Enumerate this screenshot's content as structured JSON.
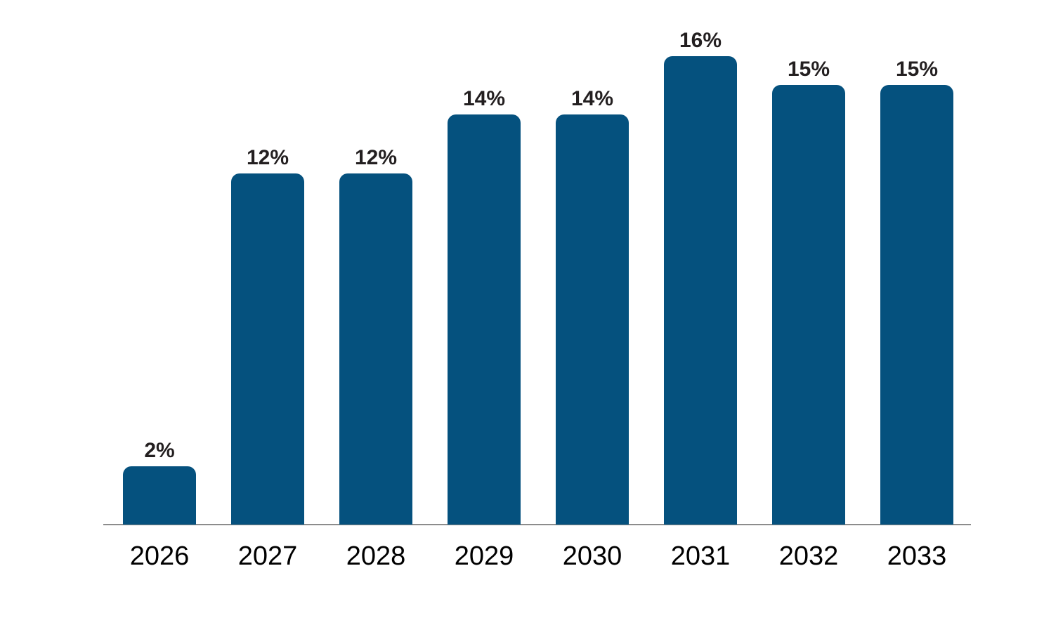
{
  "chart_data": {
    "type": "bar",
    "categories": [
      "2026",
      "2027",
      "2028",
      "2029",
      "2030",
      "2031",
      "2032",
      "2033"
    ],
    "values": [
      2,
      12,
      12,
      14,
      14,
      16,
      15,
      15
    ],
    "value_labels": [
      "2%",
      "12%",
      "12%",
      "14%",
      "14%",
      "16%",
      "15%",
      "15%"
    ],
    "title": "",
    "xlabel": "",
    "ylabel": "",
    "ylim": [
      0,
      16
    ],
    "unit": "%",
    "grid": false,
    "legend": false,
    "colors": {
      "bar": "#05517E",
      "value_label": "#231F20",
      "tick_label": "#000000",
      "axis_line": "#8C8C8C",
      "background": "#FFFFFF"
    }
  }
}
